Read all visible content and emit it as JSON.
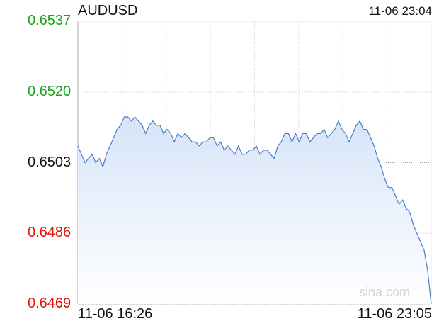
{
  "header": {
    "symbol": "AUDUSD",
    "timestamp": "11-06 23:04"
  },
  "watermark": "sina.com",
  "colors": {
    "line": "#4a7bc8",
    "fill_top": "#d6e4f9",
    "fill_bottom": "#ffffff",
    "up": "#19a319",
    "down": "#e0140a",
    "neutral": "#111111",
    "grid": "#dddddd"
  },
  "chart_data": {
    "type": "area",
    "title": "AUDUSD",
    "x_labels": [
      "11-06 16:26",
      "11-06 23:05"
    ],
    "y_ticks": [
      {
        "label": "0.6537",
        "value": 0.6537,
        "trend": "up"
      },
      {
        "label": "0.6520",
        "value": 0.652,
        "trend": "up"
      },
      {
        "label": "0.6503",
        "value": 0.6503,
        "trend": "neutral"
      },
      {
        "label": "0.6486",
        "value": 0.6486,
        "trend": "down"
      },
      {
        "label": "0.6469",
        "value": 0.6469,
        "trend": "down"
      }
    ],
    "ylim": [
      0.6469,
      0.6537
    ],
    "reference_line": 0.6503,
    "grid": true,
    "series": [
      {
        "values": [
          0.6507,
          0.6505,
          0.6503,
          0.6504,
          0.6505,
          0.6503,
          0.6504,
          0.6502,
          0.6505,
          0.6507,
          0.6509,
          0.6511,
          0.6512,
          0.6514,
          0.6514,
          0.6513,
          0.6514,
          0.6513,
          0.6512,
          0.651,
          0.6512,
          0.6513,
          0.6512,
          0.6512,
          0.651,
          0.6511,
          0.651,
          0.6508,
          0.651,
          0.6509,
          0.651,
          0.6509,
          0.6508,
          0.6508,
          0.6507,
          0.6508,
          0.6508,
          0.6509,
          0.6509,
          0.6507,
          0.6508,
          0.6506,
          0.6507,
          0.6506,
          0.6505,
          0.6507,
          0.6505,
          0.6505,
          0.6506,
          0.6506,
          0.6507,
          0.6505,
          0.6506,
          0.6506,
          0.6505,
          0.6504,
          0.6507,
          0.6508,
          0.651,
          0.651,
          0.6508,
          0.651,
          0.6508,
          0.651,
          0.651,
          0.6508,
          0.6509,
          0.651,
          0.651,
          0.6511,
          0.6509,
          0.651,
          0.6511,
          0.6513,
          0.6511,
          0.651,
          0.6508,
          0.651,
          0.6512,
          0.6513,
          0.6511,
          0.6511,
          0.6509,
          0.6507,
          0.6504,
          0.6502,
          0.6499,
          0.6497,
          0.6497,
          0.6495,
          0.6493,
          0.6494,
          0.6492,
          0.6491,
          0.6488,
          0.6486,
          0.6484,
          0.6482,
          0.6477,
          0.6469
        ]
      }
    ]
  }
}
